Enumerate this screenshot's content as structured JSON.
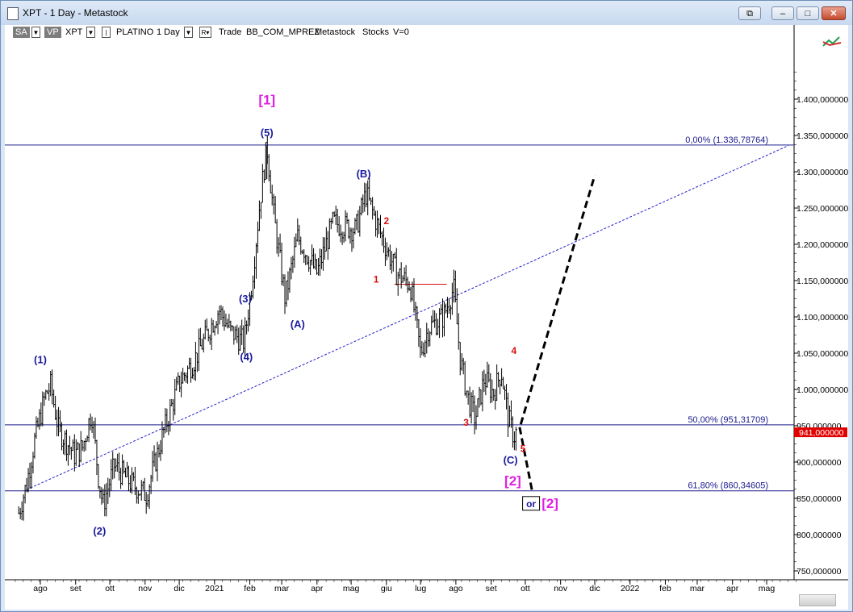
{
  "window": {
    "title": "XPT - 1 Day - Metastock",
    "controls": {
      "extra": "⧉",
      "minimize": "–",
      "maximize": "□",
      "close": "✕"
    }
  },
  "toolbar": {
    "sa": "SA",
    "vp": "VP",
    "symbol": "XPT",
    "name": "PLATINO",
    "period": "1 Day",
    "r_box": "R",
    "mode": "Trade",
    "template": "BB_COM_MPREZ",
    "source": "Metastock",
    "category": "Stocks",
    "v": "V=0"
  },
  "colors": {
    "wave_blue": "#1a1a9e",
    "primary_magenta": "#e020e0",
    "minor_red": "#d81010",
    "price_box": "#e00000",
    "fib_line": "#1a1a8c",
    "trend_line": "#2020cc"
  },
  "chart_data": {
    "type": "ohlc",
    "x_axis": {
      "ticks": [
        {
          "label": "ago",
          "date": "2020-08-01"
        },
        {
          "label": "set",
          "date": "2020-09-01"
        },
        {
          "label": "ott",
          "date": "2020-10-01"
        },
        {
          "label": "nov",
          "date": "2020-11-01"
        },
        {
          "label": "dic",
          "date": "2020-12-01"
        },
        {
          "label": "2021",
          "date": "2021-01-01"
        },
        {
          "label": "feb",
          "date": "2021-02-01"
        },
        {
          "label": "mar",
          "date": "2021-03-01"
        },
        {
          "label": "apr",
          "date": "2021-04-01"
        },
        {
          "label": "mag",
          "date": "2021-05-01"
        },
        {
          "label": "giu",
          "date": "2021-06-01"
        },
        {
          "label": "lug",
          "date": "2021-07-01"
        },
        {
          "label": "ago",
          "date": "2021-08-01"
        },
        {
          "label": "set",
          "date": "2021-09-01"
        },
        {
          "label": "ott",
          "date": "2021-10-01"
        },
        {
          "label": "nov",
          "date": "2021-11-01"
        },
        {
          "label": "dic",
          "date": "2021-12-01"
        },
        {
          "label": "2022",
          "date": "2022-01-01"
        },
        {
          "label": "feb",
          "date": "2022-02-01"
        },
        {
          "label": "mar",
          "date": "2022-03-01"
        },
        {
          "label": "apr",
          "date": "2022-04-01"
        },
        {
          "label": "mag",
          "date": "2022-05-01"
        }
      ]
    },
    "y_axis": {
      "range": [
        720,
        1450
      ],
      "ticks": [
        {
          "value": 1400,
          "label": "1.400,000000"
        },
        {
          "value": 1350,
          "label": "1.350,000000"
        },
        {
          "value": 1300,
          "label": "1.300,000000"
        },
        {
          "value": 1250,
          "label": "1.250,000000"
        },
        {
          "value": 1200,
          "label": "1.200,000000"
        },
        {
          "value": 1150,
          "label": "1.150,000000"
        },
        {
          "value": 1100,
          "label": "1.100,000000"
        },
        {
          "value": 1050,
          "label": "1.050,000000"
        },
        {
          "value": 1000,
          "label": "1.000,000000"
        },
        {
          "value": 950,
          "label": "950,000000"
        },
        {
          "value": 900,
          "label": "900,000000"
        },
        {
          "value": 850,
          "label": "850,000000"
        },
        {
          "value": 800,
          "label": "800,000000"
        },
        {
          "value": 750,
          "label": "750,000000"
        }
      ]
    },
    "last_price": {
      "value": 941,
      "label": "941,000000"
    },
    "price_path": [
      {
        "date": "2020-07-13",
        "price": 830
      },
      {
        "date": "2020-07-20",
        "price": 870
      },
      {
        "date": "2020-07-27",
        "price": 930
      },
      {
        "date": "2020-08-05",
        "price": 990
      },
      {
        "date": "2020-08-10",
        "price": 1005
      },
      {
        "date": "2020-08-17",
        "price": 945
      },
      {
        "date": "2020-08-31",
        "price": 910
      },
      {
        "date": "2020-09-07",
        "price": 920
      },
      {
        "date": "2020-09-15",
        "price": 970
      },
      {
        "date": "2020-09-21",
        "price": 880
      },
      {
        "date": "2020-09-25",
        "price": 840
      },
      {
        "date": "2020-10-05",
        "price": 895
      },
      {
        "date": "2020-10-20",
        "price": 870
      },
      {
        "date": "2020-11-02",
        "price": 855
      },
      {
        "date": "2020-11-16",
        "price": 935
      },
      {
        "date": "2020-12-01",
        "price": 1010
      },
      {
        "date": "2020-12-14",
        "price": 1040
      },
      {
        "date": "2021-01-05",
        "price": 1110
      },
      {
        "date": "2021-01-15",
        "price": 1080
      },
      {
        "date": "2021-01-27",
        "price": 1065
      },
      {
        "date": "2021-02-03",
        "price": 1150
      },
      {
        "date": "2021-02-10",
        "price": 1260
      },
      {
        "date": "2021-02-16",
        "price": 1336
      },
      {
        "date": "2021-02-22",
        "price": 1240
      },
      {
        "date": "2021-03-04",
        "price": 1125
      },
      {
        "date": "2021-03-15",
        "price": 1210
      },
      {
        "date": "2021-04-01",
        "price": 1160
      },
      {
        "date": "2021-04-15",
        "price": 1230
      },
      {
        "date": "2021-05-05",
        "price": 1220
      },
      {
        "date": "2021-05-14",
        "price": 1270
      },
      {
        "date": "2021-05-28",
        "price": 1210
      },
      {
        "date": "2021-06-10",
        "price": 1160
      },
      {
        "date": "2021-06-22",
        "price": 1145
      },
      {
        "date": "2021-07-01",
        "price": 1050
      },
      {
        "date": "2021-07-08",
        "price": 1085
      },
      {
        "date": "2021-07-21",
        "price": 1100
      },
      {
        "date": "2021-07-30",
        "price": 1140
      },
      {
        "date": "2021-08-05",
        "price": 1040
      },
      {
        "date": "2021-08-12",
        "price": 985
      },
      {
        "date": "2021-08-18",
        "price": 960
      },
      {
        "date": "2021-08-26",
        "price": 1015
      },
      {
        "date": "2021-09-03",
        "price": 995
      },
      {
        "date": "2021-09-10",
        "price": 1025
      },
      {
        "date": "2021-09-16",
        "price": 960
      },
      {
        "date": "2021-09-21",
        "price": 935
      },
      {
        "date": "2021-09-23",
        "price": 941
      }
    ],
    "horizontal_lines": [
      {
        "value": 1336.78764,
        "label": "0,00% (1.336,78764)"
      },
      {
        "value": 951.31709,
        "label": "50,00% (951,31709)"
      },
      {
        "value": 860.34605,
        "label": "61,80% (860,34605)"
      }
    ],
    "red_line": {
      "value": 1145,
      "from": "2021-06-08",
      "to": "2021-07-24"
    },
    "trend_line": {
      "from": {
        "date": "2020-07-20",
        "price": 862
      },
      "to": {
        "date": "2022-05-20",
        "price": 1336
      }
    },
    "projection_up": {
      "from": {
        "date": "2021-09-27",
        "price": 952
      },
      "to": {
        "date": "2021-12-01",
        "price": 1295
      }
    },
    "projection_down": {
      "from": {
        "date": "2021-09-26",
        "price": 948
      },
      "to": {
        "date": "2021-10-07",
        "price": 860
      }
    },
    "annotations": [
      {
        "text": "[1]",
        "date": "2021-02-16",
        "price": 1393,
        "style": "primary"
      },
      {
        "text": "(5)",
        "date": "2021-02-16",
        "price": 1349,
        "style": "wave"
      },
      {
        "text": "(1)",
        "date": "2020-08-01",
        "price": 1036,
        "style": "wave"
      },
      {
        "text": "(2)",
        "date": "2020-09-22",
        "price": 800,
        "style": "wave"
      },
      {
        "text": "(3)",
        "date": "2021-01-28",
        "price": 1120,
        "style": "wave"
      },
      {
        "text": "(4)",
        "date": "2021-01-29",
        "price": 1040,
        "style": "wave"
      },
      {
        "text": "(A)",
        "date": "2021-03-15",
        "price": 1085,
        "style": "wave"
      },
      {
        "text": "(B)",
        "date": "2021-05-12",
        "price": 1292,
        "style": "wave"
      },
      {
        "text": "(C)",
        "date": "2021-09-18",
        "price": 898,
        "style": "wave"
      },
      {
        "text": "[2]",
        "date": "2021-09-20",
        "price": 868,
        "style": "primary"
      },
      {
        "text": "2",
        "date": "2021-06-01",
        "price": 1228,
        "style": "minor"
      },
      {
        "text": "1",
        "date": "2021-05-23",
        "price": 1147,
        "style": "minor"
      },
      {
        "text": "3",
        "date": "2021-08-10",
        "price": 950,
        "style": "minor"
      },
      {
        "text": "4",
        "date": "2021-09-21",
        "price": 1049,
        "style": "minor"
      },
      {
        "text": "5",
        "date": "2021-09-29",
        "price": 914,
        "style": "minor"
      }
    ],
    "or_label": {
      "or": "or",
      "wave": "[2]",
      "date": "2021-10-05",
      "price": 838
    }
  }
}
